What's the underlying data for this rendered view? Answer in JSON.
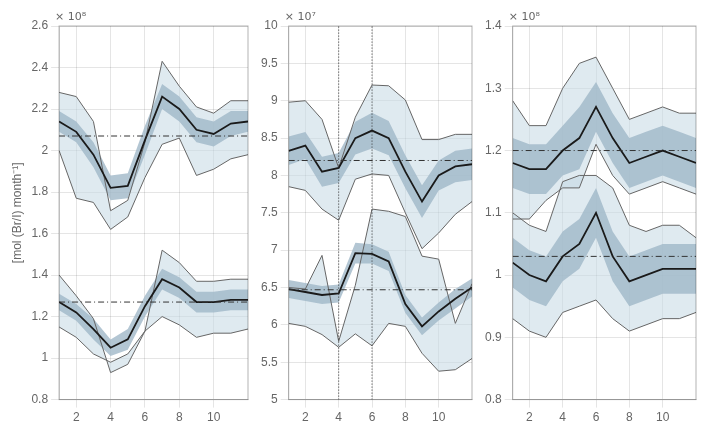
{
  "chart_data": [
    {
      "type": "line",
      "y_label": "[mol (Br/I) month⁻¹]",
      "annotation": "× 10⁸",
      "x": [
        1,
        2,
        3,
        4,
        5,
        6,
        7,
        8,
        9,
        10,
        11,
        12
      ],
      "xlim": [
        1,
        12
      ],
      "xticks": [
        2,
        4,
        6,
        8,
        10
      ],
      "ylim": [
        0.8,
        2.6
      ],
      "yticks": [
        0.8,
        1,
        1.2,
        1.4,
        1.6,
        1.8,
        2,
        2.2,
        2.4,
        2.6
      ],
      "grid": true,
      "series": [
        {
          "type": "band",
          "color": "#c5d8e3",
          "low": [
            2.0,
            1.77,
            1.75,
            1.62,
            1.68,
            1.87,
            2.03,
            2.06,
            1.88,
            1.91,
            1.96,
            1.98
          ],
          "high": [
            2.28,
            2.26,
            2.14,
            1.71,
            1.76,
            2.04,
            2.43,
            2.31,
            2.21,
            2.18,
            2.24,
            2.24
          ]
        },
        {
          "type": "band",
          "color": "#a0b8c8",
          "low": [
            2.09,
            2.04,
            1.92,
            1.76,
            1.77,
            1.98,
            2.2,
            2.14,
            2.04,
            2.02,
            2.07,
            2.09
          ],
          "high": [
            2.19,
            2.14,
            2.04,
            1.88,
            1.89,
            2.12,
            2.32,
            2.26,
            2.16,
            2.14,
            2.19,
            2.19
          ]
        },
        {
          "type": "line",
          "color": "#666666",
          "values": [
            2.28,
            2.26,
            2.14,
            1.71,
            1.76,
            2.04,
            2.43,
            2.31,
            2.21,
            2.18,
            2.24,
            2.24
          ]
        },
        {
          "type": "line",
          "color": "#666666",
          "values": [
            2.0,
            1.77,
            1.75,
            1.62,
            1.68,
            1.87,
            2.03,
            2.06,
            1.88,
            1.91,
            1.96,
            1.98
          ]
        },
        {
          "type": "line",
          "color": "#1a1a1a",
          "values": [
            2.14,
            2.09,
            1.98,
            1.82,
            1.83,
            2.05,
            2.26,
            2.2,
            2.1,
            2.08,
            2.13,
            2.14
          ]
        },
        {
          "type": "hline",
          "color": "#333333",
          "line_style": "dashdot",
          "value": 2.07
        },
        {
          "type": "band",
          "color": "#c5d8e3",
          "low": [
            1.15,
            1.1,
            1.02,
            0.98,
            1.02,
            1.13,
            1.2,
            1.16,
            1.1,
            1.12,
            1.12,
            1.14
          ],
          "high": [
            1.4,
            1.3,
            1.19,
            0.93,
            0.97,
            1.13,
            1.52,
            1.46,
            1.37,
            1.37,
            1.38,
            1.38
          ]
        },
        {
          "type": "band",
          "color": "#a0b8c8",
          "low": [
            1.23,
            1.18,
            1.09,
            1.01,
            1.04,
            1.2,
            1.33,
            1.29,
            1.22,
            1.22,
            1.23,
            1.23
          ],
          "high": [
            1.31,
            1.26,
            1.19,
            1.09,
            1.14,
            1.3,
            1.43,
            1.39,
            1.32,
            1.32,
            1.33,
            1.33
          ]
        },
        {
          "type": "line",
          "color": "#666666",
          "values": [
            1.4,
            1.3,
            1.19,
            0.93,
            0.97,
            1.13,
            1.52,
            1.46,
            1.37,
            1.37,
            1.38,
            1.38
          ]
        },
        {
          "type": "line",
          "color": "#666666",
          "values": [
            1.15,
            1.1,
            1.02,
            0.98,
            1.02,
            1.13,
            1.2,
            1.16,
            1.1,
            1.12,
            1.12,
            1.14
          ]
        },
        {
          "type": "line",
          "color": "#1a1a1a",
          "values": [
            1.27,
            1.22,
            1.14,
            1.05,
            1.09,
            1.25,
            1.38,
            1.34,
            1.27,
            1.27,
            1.28,
            1.28
          ]
        },
        {
          "type": "hline",
          "color": "#333333",
          "line_style": "dashdot",
          "value": 1.27
        }
      ]
    },
    {
      "type": "line",
      "annotation": "× 10⁷",
      "x": [
        1,
        2,
        3,
        4,
        5,
        6,
        7,
        8,
        9,
        10,
        11,
        12
      ],
      "xlim": [
        1,
        12
      ],
      "xticks": [
        2,
        4,
        6,
        8,
        10
      ],
      "ylim": [
        5,
        10
      ],
      "yticks": [
        5,
        5.5,
        6,
        6.5,
        7,
        7.5,
        8,
        8.5,
        9,
        9.5,
        10
      ],
      "grid": true,
      "series": [
        {
          "type": "band",
          "color": "#c5d8e3",
          "low": [
            7.85,
            7.8,
            7.55,
            7.4,
            7.95,
            8.02,
            8.0,
            7.5,
            7.02,
            7.23,
            7.48,
            7.65
          ],
          "high": [
            8.98,
            9.0,
            8.75,
            8.1,
            8.78,
            9.21,
            9.2,
            9.01,
            8.48,
            8.48,
            8.55,
            8.55
          ]
        },
        {
          "type": "band",
          "color": "#a0b8c8",
          "low": [
            8.14,
            8.22,
            7.85,
            7.9,
            8.28,
            8.36,
            8.27,
            7.83,
            7.43,
            7.8,
            7.91,
            7.94
          ],
          "high": [
            8.52,
            8.58,
            8.25,
            8.3,
            8.72,
            8.84,
            8.73,
            8.27,
            7.87,
            8.2,
            8.33,
            8.36
          ]
        },
        {
          "type": "line",
          "color": "#666666",
          "values": [
            8.98,
            9.0,
            8.75,
            8.1,
            8.78,
            9.21,
            9.2,
            9.01,
            8.48,
            8.48,
            8.55,
            8.55
          ]
        },
        {
          "type": "line",
          "color": "#666666",
          "values": [
            7.85,
            7.8,
            7.55,
            7.4,
            7.95,
            8.02,
            8.0,
            7.5,
            7.02,
            7.23,
            7.48,
            7.65
          ]
        },
        {
          "type": "line",
          "color": "#1a1a1a",
          "values": [
            8.33,
            8.4,
            8.05,
            8.1,
            8.5,
            8.6,
            8.5,
            8.05,
            7.65,
            8.0,
            8.12,
            8.15
          ]
        },
        {
          "type": "hline",
          "color": "#333333",
          "line_style": "dashdot",
          "value": 8.2
        },
        {
          "type": "band",
          "color": "#c5d8e3",
          "low": [
            6.02,
            5.98,
            5.87,
            5.7,
            5.88,
            5.72,
            6.02,
            5.98,
            5.62,
            5.38,
            5.4,
            5.55
          ],
          "high": [
            6.5,
            6.48,
            6.93,
            5.78,
            6.53,
            7.55,
            7.52,
            7.45,
            6.92,
            6.88,
            6.02,
            6.55
          ]
        },
        {
          "type": "band",
          "color": "#a0b8c8",
          "low": [
            6.36,
            6.32,
            6.28,
            6.3,
            6.82,
            6.82,
            6.72,
            6.16,
            5.86,
            6.06,
            6.22,
            6.38
          ],
          "high": [
            6.6,
            6.56,
            6.52,
            6.54,
            7.1,
            7.08,
            6.98,
            6.4,
            6.1,
            6.3,
            6.48,
            6.62
          ]
        },
        {
          "type": "line",
          "color": "#666666",
          "values": [
            6.5,
            6.48,
            6.93,
            5.78,
            6.53,
            7.55,
            7.52,
            7.45,
            6.92,
            6.88,
            6.02,
            6.55
          ]
        },
        {
          "type": "line",
          "color": "#666666",
          "values": [
            6.02,
            5.98,
            5.87,
            5.7,
            5.88,
            5.72,
            6.02,
            5.98,
            5.62,
            5.38,
            5.4,
            5.55
          ]
        },
        {
          "type": "line",
          "color": "#1a1a1a",
          "values": [
            6.48,
            6.44,
            6.4,
            6.42,
            6.96,
            6.95,
            6.85,
            6.28,
            5.98,
            6.18,
            6.35,
            6.5
          ]
        },
        {
          "type": "hline",
          "color": "#333333",
          "line_style": "dashdot",
          "value": 6.47
        },
        {
          "type": "vline",
          "color": "#333333",
          "line_style": "dotted",
          "value": 4
        },
        {
          "type": "vline",
          "color": "#333333",
          "line_style": "dotted",
          "value": 6
        }
      ]
    },
    {
      "type": "line",
      "annotation": "× 10⁸",
      "x": [
        1,
        2,
        3,
        4,
        5,
        6,
        7,
        8,
        9,
        10,
        11,
        12
      ],
      "xlim": [
        1,
        12
      ],
      "xticks": [
        2,
        4,
        6,
        8,
        10
      ],
      "ylim": [
        0.8,
        1.4
      ],
      "yticks": [
        0.8,
        0.9,
        1,
        1.1,
        1.2,
        1.3,
        1.4
      ],
      "grid": true,
      "series": [
        {
          "type": "band",
          "color": "#c5d8e3",
          "low": [
            1.09,
            1.09,
            1.12,
            1.14,
            1.14,
            1.21,
            1.16,
            1.13,
            1.14,
            1.15,
            1.14,
            1.13
          ],
          "high": [
            1.28,
            1.24,
            1.24,
            1.3,
            1.34,
            1.35,
            1.3,
            1.25,
            1.26,
            1.27,
            1.26,
            1.26
          ]
        },
        {
          "type": "band",
          "color": "#a0b8c8",
          "low": [
            1.14,
            1.13,
            1.13,
            1.16,
            1.17,
            1.23,
            1.18,
            1.14,
            1.15,
            1.16,
            1.15,
            1.14
          ],
          "high": [
            1.22,
            1.21,
            1.21,
            1.24,
            1.27,
            1.31,
            1.26,
            1.22,
            1.23,
            1.24,
            1.23,
            1.22
          ]
        },
        {
          "type": "line",
          "color": "#666666",
          "values": [
            1.28,
            1.24,
            1.24,
            1.3,
            1.34,
            1.35,
            1.3,
            1.25,
            1.26,
            1.27,
            1.26,
            1.26
          ]
        },
        {
          "type": "line",
          "color": "#666666",
          "values": [
            1.09,
            1.09,
            1.12,
            1.14,
            1.14,
            1.21,
            1.16,
            1.13,
            1.14,
            1.15,
            1.14,
            1.13
          ]
        },
        {
          "type": "line",
          "color": "#1a1a1a",
          "values": [
            1.18,
            1.17,
            1.17,
            1.2,
            1.22,
            1.27,
            1.22,
            1.18,
            1.19,
            1.2,
            1.19,
            1.18
          ]
        },
        {
          "type": "hline",
          "color": "#333333",
          "line_style": "dashdot",
          "value": 1.2
        },
        {
          "type": "band",
          "color": "#c5d8e3",
          "low": [
            0.93,
            0.91,
            0.9,
            0.94,
            0.95,
            0.96,
            0.93,
            0.91,
            0.92,
            0.93,
            0.93,
            0.94
          ],
          "high": [
            1.1,
            1.08,
            1.07,
            1.15,
            1.16,
            1.16,
            1.14,
            1.08,
            1.07,
            1.08,
            1.08,
            1.06
          ]
        },
        {
          "type": "band",
          "color": "#a0b8c8",
          "low": [
            0.98,
            0.96,
            0.95,
            0.99,
            1.01,
            1.06,
            0.99,
            0.95,
            0.96,
            0.97,
            0.97,
            0.97
          ],
          "high": [
            1.06,
            1.04,
            1.03,
            1.07,
            1.09,
            1.14,
            1.07,
            1.03,
            1.04,
            1.05,
            1.05,
            1.05
          ]
        },
        {
          "type": "line",
          "color": "#666666",
          "values": [
            1.1,
            1.08,
            1.07,
            1.15,
            1.16,
            1.16,
            1.14,
            1.08,
            1.07,
            1.08,
            1.08,
            1.06
          ]
        },
        {
          "type": "line",
          "color": "#666666",
          "values": [
            0.93,
            0.91,
            0.9,
            0.94,
            0.95,
            0.96,
            0.93,
            0.91,
            0.92,
            0.93,
            0.93,
            0.94
          ]
        },
        {
          "type": "line",
          "color": "#1a1a1a",
          "values": [
            1.02,
            1.0,
            0.99,
            1.03,
            1.05,
            1.1,
            1.03,
            0.99,
            1.0,
            1.01,
            1.01,
            1.01
          ]
        },
        {
          "type": "hline",
          "color": "#333333",
          "line_style": "dashdot",
          "value": 1.03
        }
      ]
    }
  ]
}
